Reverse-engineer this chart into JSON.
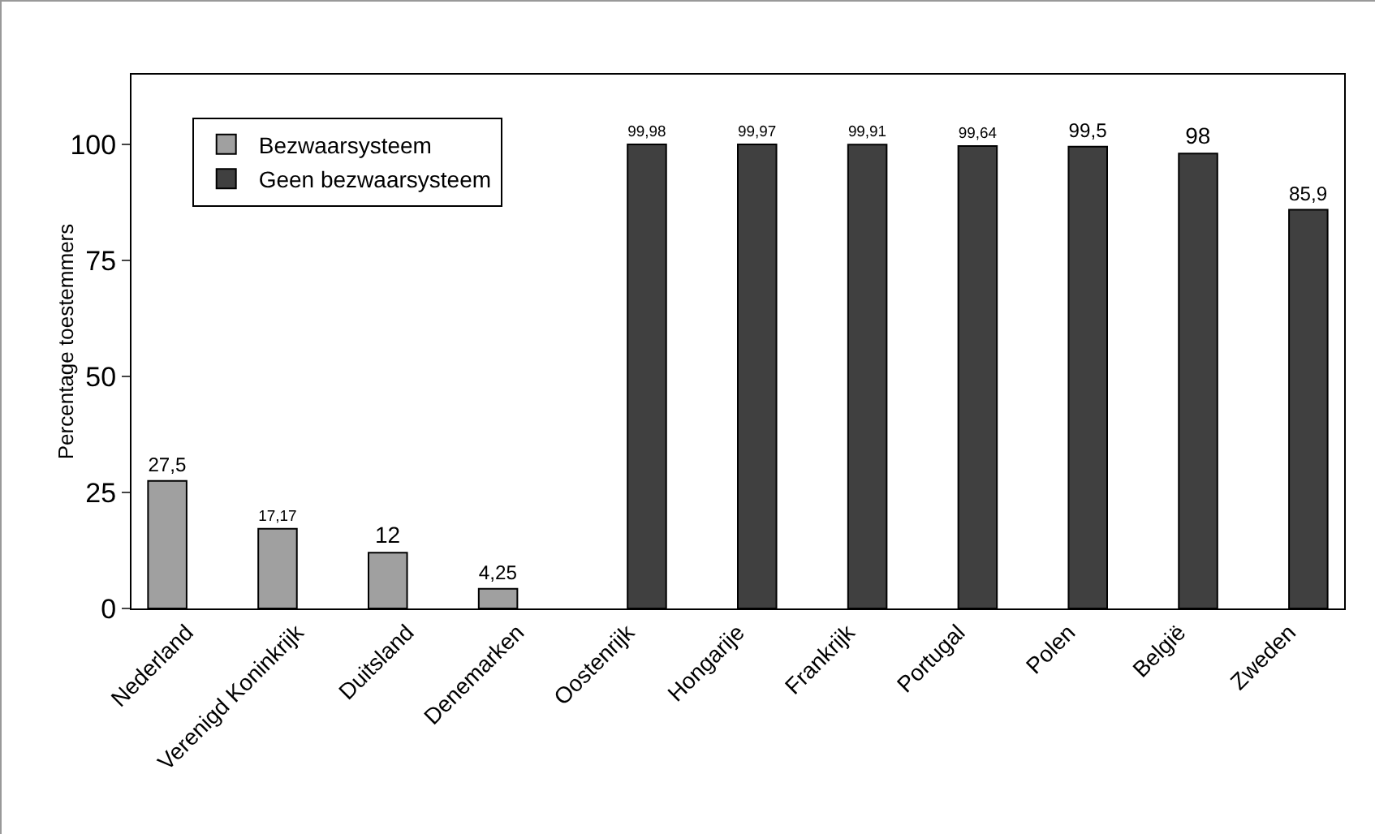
{
  "chart_data": {
    "type": "bar",
    "ylabel": "Percentage toestemmers",
    "categories": [
      "Nederland",
      "Verenigd Koninkrijk",
      "Duitsland",
      "Denemarken",
      "Oostenrijk",
      "Hongarije",
      "Frankrijk",
      "Portugal",
      "Polen",
      "België",
      "Zweden"
    ],
    "series": [
      {
        "name": "Bezwaarsysteem",
        "color": "#a0a0a0",
        "values": [
          27.5,
          17.17,
          12,
          4.25,
          null,
          null,
          null,
          null,
          null,
          null,
          null
        ],
        "value_labels": [
          "27,5",
          "17,17",
          "12",
          "4,25",
          null,
          null,
          null,
          null,
          null,
          null,
          null
        ]
      },
      {
        "name": "Geen bezwaarsysteem",
        "color": "#404040",
        "values": [
          null,
          null,
          null,
          null,
          99.98,
          99.97,
          99.91,
          99.64,
          99.5,
          98,
          85.9
        ],
        "value_labels": [
          null,
          null,
          null,
          null,
          "99,98",
          "99,97",
          "99,91",
          "99,64",
          "99,5",
          "98",
          "85,9"
        ]
      }
    ],
    "ylim": [
      0,
      115
    ],
    "yticks": [
      0,
      25,
      50,
      75,
      100
    ],
    "grid": false,
    "legend": "top left"
  }
}
